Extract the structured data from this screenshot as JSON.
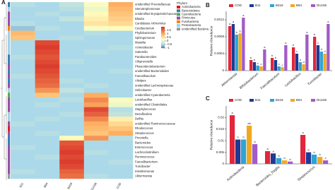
{
  "chart_data": [
    {
      "type": "heatmap",
      "label": "A",
      "rows": [
        "unidentified Prevotellaceae",
        "Stenotrophomonas",
        "unidentified Erysipelotrichaceae",
        "Blautia",
        "Candidatus Arthromitus",
        "Cetobacterium",
        "Phyllobacterium",
        "Sphingomonas",
        "Massilia",
        "Acinetobacter",
        "Sutterella",
        "Parabacteroides",
        "Alloprevotella",
        "Phascolarctobacterium",
        "unidentified Bacteroidales",
        "Faecalibaculum",
        "Alistipes",
        "unidentified Lachnospiraceae",
        "Helicobacter",
        "unidentified Cyanobacteria",
        "Lactobacillus",
        "unidentified Clostridiales",
        "Staphylococcus",
        "Desulfovibrio",
        "Delftia",
        "unidentified Ruminococcaceae",
        "Rhodococcus",
        "Streptococcus",
        "Prevotella",
        "Bacteroides",
        "Enterococcus",
        "Lachnoclostridium",
        "Ruminococcus",
        "Faecalibacterium",
        "Turicibacter",
        "Intestinimonas",
        "Akkermansia"
      ],
      "columns": [
        "B11",
        "B94",
        "B418",
        "DU106",
        "COD"
      ],
      "values": [
        [
          -0.4,
          -0.5,
          -0.3,
          0.2,
          1.0
        ],
        [
          -0.5,
          -0.5,
          -0.4,
          0.1,
          0.9
        ],
        [
          -0.5,
          -0.4,
          -0.5,
          0.3,
          0.8
        ],
        [
          -0.5,
          -0.5,
          -0.3,
          0.4,
          0.7
        ],
        [
          -0.4,
          -0.5,
          -0.5,
          0.5,
          0.6
        ],
        [
          -0.6,
          -0.4,
          -0.5,
          0.2,
          0.3
        ],
        [
          0.9,
          -0.5,
          -0.5,
          -0.4,
          -0.5
        ],
        [
          0.8,
          -0.5,
          -0.4,
          -0.5,
          -0.5
        ],
        [
          -0.5,
          1.8,
          -0.5,
          -0.5,
          -0.5
        ],
        [
          -0.5,
          1.9,
          -0.5,
          -0.5,
          -0.4
        ],
        [
          -0.5,
          1.8,
          -0.5,
          -0.4,
          -0.5
        ],
        [
          -0.4,
          1.7,
          -0.5,
          -0.5,
          -0.5
        ],
        [
          -0.5,
          1.8,
          -0.4,
          -0.5,
          -0.5
        ],
        [
          -0.5,
          1.9,
          -0.5,
          -0.5,
          -0.5
        ],
        [
          -0.5,
          1.8,
          -0.5,
          -0.5,
          -0.4
        ],
        [
          -0.4,
          1.7,
          -0.5,
          -0.5,
          -0.5
        ],
        [
          -0.5,
          1.6,
          -0.4,
          -0.5,
          -0.5
        ],
        [
          -0.5,
          1.5,
          -0.5,
          -0.4,
          -0.5
        ],
        [
          -0.5,
          1.2,
          -0.3,
          -0.5,
          -0.5
        ],
        [
          -0.5,
          0.8,
          -0.5,
          1.0,
          -0.5
        ],
        [
          -0.5,
          -0.5,
          -0.4,
          1.3,
          0.2
        ],
        [
          -0.5,
          -0.4,
          -0.5,
          1.1,
          0.1
        ],
        [
          -0.5,
          -0.5,
          -0.5,
          1.8,
          -0.4
        ],
        [
          -0.5,
          -0.5,
          -0.4,
          1.6,
          -0.3
        ],
        [
          -0.5,
          -0.4,
          -0.5,
          1.3,
          0.4
        ],
        [
          -0.4,
          -0.5,
          -0.5,
          1.0,
          0.6
        ],
        [
          -0.5,
          -0.5,
          -0.5,
          0.9,
          0.8
        ],
        [
          -0.5,
          -0.4,
          -0.5,
          0.8,
          1.0
        ],
        [
          -0.5,
          -0.5,
          0.3,
          1.2,
          -0.4
        ],
        [
          -0.5,
          -0.5,
          1.7,
          -0.5,
          -0.5
        ],
        [
          -0.4,
          -0.5,
          1.8,
          -0.5,
          -0.5
        ],
        [
          -0.5,
          -0.5,
          1.9,
          -0.4,
          -0.5
        ],
        [
          -0.5,
          -0.4,
          1.8,
          -0.5,
          -0.5
        ],
        [
          -0.5,
          -0.5,
          1.9,
          -0.5,
          -0.4
        ],
        [
          -0.5,
          -0.5,
          1.8,
          -0.5,
          -0.5
        ],
        [
          -0.4,
          -0.5,
          1.6,
          -0.5,
          -0.5
        ],
        [
          -0.5,
          -0.5,
          1.5,
          -0.4,
          -0.5
        ]
      ],
      "zlim": [
        -1,
        2
      ],
      "zticks": [
        1.5,
        1,
        0.5,
        0,
        -0.5,
        -1
      ],
      "legend_title": "Phylum",
      "groups": [
        {
          "name": "Actinobacteria",
          "color": "#e41a1c"
        },
        {
          "name": "Bacteroidetes",
          "color": "#377eb8"
        },
        {
          "name": "Cyanobacteria",
          "color": "#4daf4a"
        },
        {
          "name": "Firmicutes",
          "color": "#984ea3"
        },
        {
          "name": "Fusobacteria",
          "color": "#ff7f00"
        },
        {
          "name": "Proteobacteria",
          "color": "#a6cee3"
        },
        {
          "name": "unidentified Bacteria",
          "color": "#999999"
        }
      ],
      "row_groups": [
        1,
        5,
        3,
        3,
        3,
        4,
        5,
        5,
        5,
        5,
        5,
        1,
        1,
        3,
        1,
        3,
        1,
        3,
        5,
        2,
        3,
        3,
        3,
        5,
        5,
        3,
        0,
        3,
        1,
        1,
        3,
        3,
        3,
        3,
        3,
        3,
        6
      ]
    },
    {
      "type": "bar",
      "label": "B",
      "y_label": "Relative Abundance",
      "categories": [
        "Akkermansia",
        "Bifidobacterium",
        "Faecalibaculum",
        "Lactobacillus",
        "Turicibacter"
      ],
      "ylim": [
        0,
        0.0014
      ],
      "yticks": [
        0,
        0.0004,
        0.0008,
        0.0012
      ],
      "series": [
        {
          "name": "COD",
          "color": "#e2263b",
          "values": [
            0.00105,
            0.00025,
            0.0003,
            0.00055,
            0.0008
          ],
          "letters": [
            "a",
            "b",
            "b",
            "b",
            "b"
          ]
        },
        {
          "name": "B11",
          "color": "#1f3a93",
          "values": [
            0.0011,
            0.0002,
            0.00025,
            0.0004,
            0.0006
          ],
          "letters": [
            "a",
            "b",
            "b",
            "c",
            "c"
          ]
        },
        {
          "name": "B418",
          "color": "#2ea3d6",
          "values": [
            0.00085,
            0.00012,
            0.0001,
            0.0002,
            0.00045
          ],
          "letters": [
            "b",
            "c",
            "c",
            "d",
            "d"
          ]
        },
        {
          "name": "B94",
          "color": "#f2a81d",
          "values": [
            0.00088,
            0.0001,
            8e-05,
            0.00015,
            0.0004
          ],
          "letters": [
            "b",
            "c",
            "c",
            "d",
            "d"
          ]
        },
        {
          "name": "DU106",
          "color": "#a25bc7",
          "values": [
            0.00125,
            0.0005,
            0.0006,
            0.00085,
            0.0011
          ],
          "letters": [
            "a",
            "a",
            "a",
            "a",
            "a"
          ]
        }
      ]
    },
    {
      "type": "bar",
      "label": "C",
      "y_label": "Relative Abundance",
      "categories": [
        "Actinobacteria",
        "Bacteroides_fragilis",
        "Streptococcus"
      ],
      "ylim": [
        0,
        0.025
      ],
      "yticks": [
        0,
        0.005,
        0.01,
        0.015,
        0.02
      ],
      "series": [
        {
          "name": "COD",
          "color": "#e2263b",
          "values": [
            0.021,
            0.0055,
            0.0125
          ],
          "letters": [
            "a",
            "a",
            "a"
          ]
        },
        {
          "name": "B11",
          "color": "#1f3a93",
          "values": [
            0.0105,
            0.0045,
            0.005
          ],
          "letters": [
            "b",
            "a",
            "b"
          ]
        },
        {
          "name": "B418",
          "color": "#2ea3d6",
          "values": [
            0.0105,
            0.0025,
            0.004
          ],
          "letters": [
            "b",
            "b",
            "b"
          ]
        },
        {
          "name": "B94",
          "color": "#f2a81d",
          "values": [
            0.0165,
            0.0015,
            0.003
          ],
          "letters": [
            "ab",
            "b",
            "b"
          ]
        },
        {
          "name": "DU106",
          "color": "#a25bc7",
          "values": [
            0.0085,
            0.001,
            0.0015
          ],
          "letters": [
            "b",
            "b",
            "c"
          ]
        }
      ]
    }
  ]
}
